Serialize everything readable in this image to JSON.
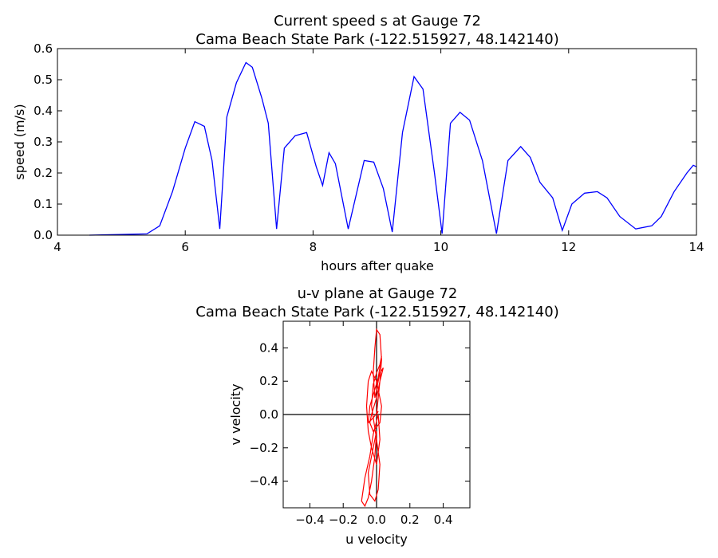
{
  "chart_data": [
    {
      "type": "line",
      "title_line1": "Current speed s at Gauge 72",
      "title_line2": "Cama Beach State Park  (-122.515927, 48.142140)",
      "xlabel": "hours after quake",
      "ylabel": "speed (m/s)",
      "xlim": [
        4,
        14
      ],
      "ylim": [
        0,
        0.6
      ],
      "x_ticks": [
        "4",
        "6",
        "8",
        "10",
        "12",
        "14"
      ],
      "y_ticks": [
        "0.0",
        "0.1",
        "0.2",
        "0.3",
        "0.4",
        "0.5",
        "0.6"
      ],
      "grid": false,
      "color": "#0000ff",
      "series": [
        {
          "x": [
            4.5,
            5.0,
            5.4,
            5.6,
            5.8,
            6.0,
            6.15,
            6.3,
            6.42,
            6.54,
            6.65,
            6.8,
            6.95,
            7.05,
            7.2,
            7.3,
            7.43,
            7.55,
            7.72,
            7.9,
            8.05,
            8.15,
            8.25,
            8.35,
            8.55,
            8.8,
            8.95,
            9.1,
            9.24,
            9.4,
            9.58,
            9.72,
            9.9,
            10.02,
            10.15,
            10.3,
            10.45,
            10.65,
            10.87,
            11.05,
            11.25,
            11.4,
            11.55,
            11.75,
            11.9,
            12.05,
            12.25,
            12.45,
            12.6,
            12.8,
            13.05,
            13.3,
            13.45,
            13.65,
            13.85,
            13.95,
            14.0
          ],
          "y": [
            0.0,
            0.002,
            0.004,
            0.03,
            0.14,
            0.28,
            0.365,
            0.35,
            0.24,
            0.02,
            0.38,
            0.49,
            0.555,
            0.54,
            0.44,
            0.36,
            0.02,
            0.28,
            0.32,
            0.33,
            0.22,
            0.16,
            0.265,
            0.23,
            0.02,
            0.24,
            0.235,
            0.15,
            0.01,
            0.33,
            0.51,
            0.47,
            0.2,
            0.005,
            0.36,
            0.395,
            0.37,
            0.24,
            0.005,
            0.24,
            0.285,
            0.25,
            0.17,
            0.12,
            0.015,
            0.1,
            0.135,
            0.14,
            0.12,
            0.06,
            0.02,
            0.03,
            0.06,
            0.14,
            0.2,
            0.225,
            0.22
          ]
        }
      ]
    },
    {
      "type": "line",
      "title_line1": "u-v plane at Gauge 72",
      "title_line2": "Cama Beach State Park  (-122.515927, 48.142140)",
      "xlabel": "u velocity",
      "ylabel": "v velocity",
      "xlim": [
        -0.56,
        0.56
      ],
      "ylim": [
        -0.56,
        0.56
      ],
      "x_ticks": [
        "−0.4",
        "−0.2",
        "0.0",
        "0.2",
        "0.4"
      ],
      "y_ticks": [
        "−0.4",
        "−0.2",
        "0.0",
        "0.2",
        "0.4"
      ],
      "grid": false,
      "color": "#ff0000",
      "series": [
        {
          "x": [
            0.0,
            0.01,
            0.02,
            0.03,
            0.02,
            0.0,
            -0.01,
            -0.02,
            -0.01,
            0.02,
            0.04,
            0.02,
            0.0,
            -0.03,
            -0.04,
            -0.02,
            0.02,
            0.03,
            0.0,
            -0.03,
            -0.05,
            -0.06,
            -0.05,
            -0.03,
            0.0,
            0.02,
            0.01,
            -0.02,
            -0.04,
            -0.07,
            -0.08,
            -0.09,
            -0.07,
            -0.05,
            -0.03,
            -0.01,
            0.0,
            -0.02,
            -0.05,
            -0.04,
            -0.01,
            0.01,
            0.02,
            0.0,
            -0.03,
            -0.02,
            0.0,
            0.02,
            0.03,
            0.01,
            -0.04,
            -0.05,
            -0.02,
            0.01,
            0.0
          ],
          "y": [
            0.0,
            0.1,
            0.2,
            0.33,
            0.48,
            0.51,
            0.4,
            0.25,
            0.1,
            0.25,
            0.28,
            0.2,
            0.1,
            0.0,
            -0.05,
            -0.1,
            -0.05,
            0.05,
            0.2,
            0.26,
            0.2,
            0.05,
            -0.1,
            -0.2,
            -0.3,
            -0.15,
            0.0,
            -0.12,
            -0.25,
            -0.38,
            -0.45,
            -0.52,
            -0.55,
            -0.5,
            -0.4,
            -0.25,
            -0.1,
            -0.2,
            -0.35,
            -0.48,
            -0.52,
            -0.45,
            -0.3,
            -0.15,
            0.05,
            0.18,
            0.25,
            0.3,
            0.35,
            0.22,
            0.05,
            -0.05,
            -0.02,
            0.02,
            0.0
          ]
        }
      ]
    }
  ]
}
